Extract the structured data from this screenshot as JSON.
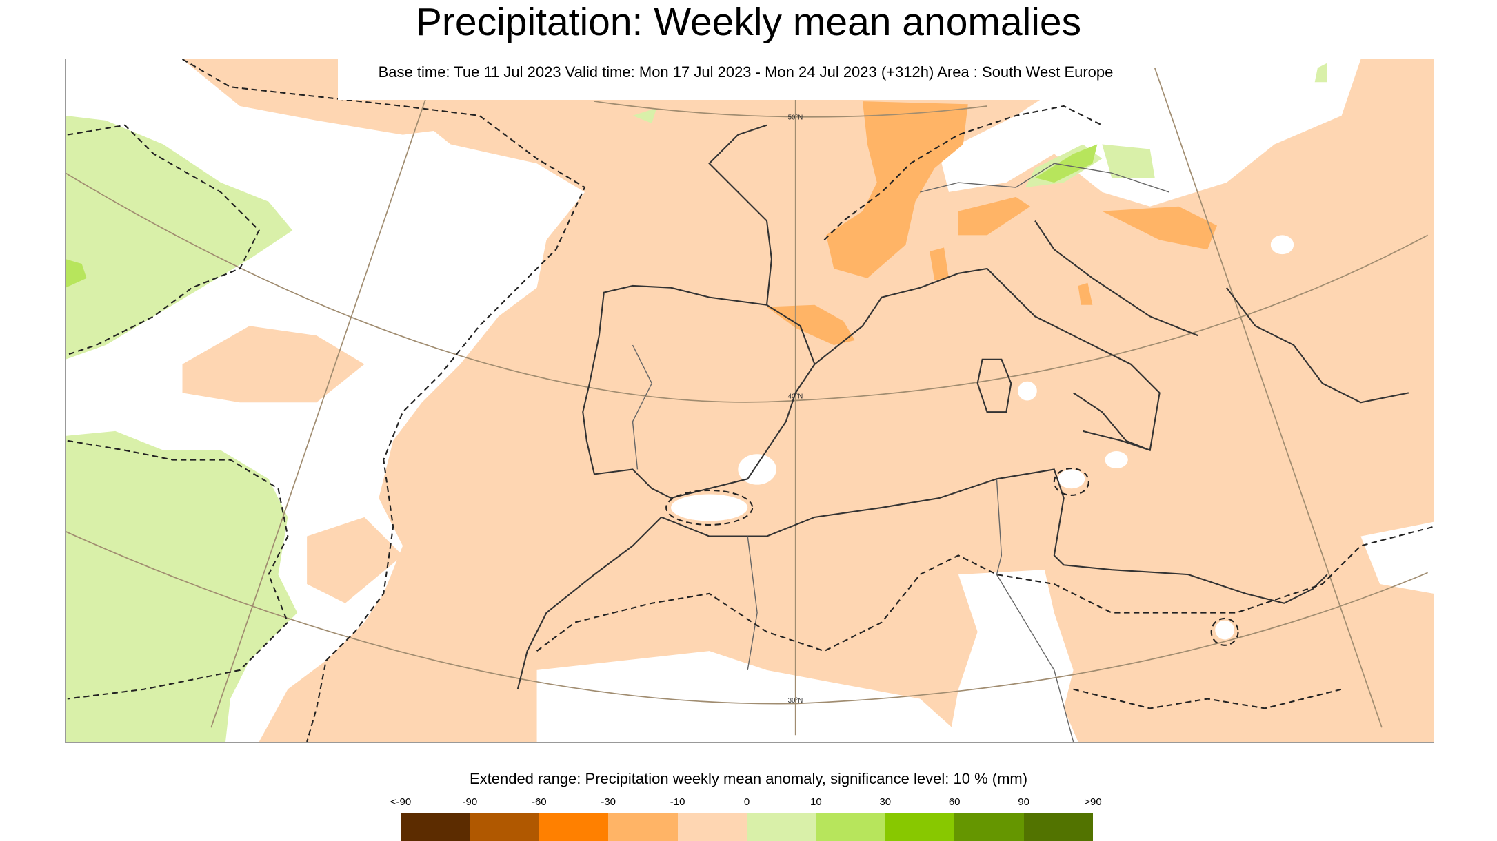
{
  "title": "Precipitation: Weekly mean anomalies",
  "subtitle": "Base time: Tue 11 Jul 2023 Valid time: Mon 17 Jul 2023 - Mon 24 Jul 2023 (+312h) Area : South West Europe",
  "map": {
    "lat_labels": [
      "50°N",
      "40°N",
      "30°N"
    ]
  },
  "legend": {
    "title": "Extended range: Precipitation weekly mean anomaly, significance level: 10 % (mm)",
    "labels": [
      "<-90",
      "-90",
      "-60",
      "-30",
      "-10",
      "0",
      "10",
      "30",
      "60",
      "90",
      ">90"
    ],
    "colors": [
      "#5c2c00",
      "#b05800",
      "#ff8000",
      "#ffb466",
      "#fed6b2",
      "#d9f0a9",
      "#b7e55c",
      "#88c800",
      "#659600",
      "#527300"
    ]
  }
}
